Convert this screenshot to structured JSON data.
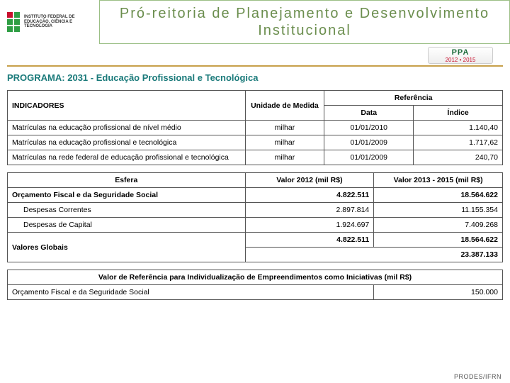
{
  "header": {
    "logo_text": "INSTITUTO FEDERAL DE EDUCAÇÃO, CIÊNCIA E TECNOLOGIA",
    "title": "Pró-reitoria de Planejamento e Desenvolvimento Institucional",
    "ppa_label": "PPA",
    "ppa_years": "2012 • 2015"
  },
  "programa": {
    "label": "PROGRAMA:",
    "value": "2031 - Educação Profissional e Tecnológica"
  },
  "table1": {
    "headers": {
      "indicadores": "INDICADORES",
      "unidade": "Unidade de Medida",
      "referencia": "Referência",
      "data": "Data",
      "indice": "Índice"
    },
    "rows": [
      {
        "ind": "Matrículas na educação profissional de nível médio",
        "uni": "milhar",
        "data": "01/01/2010",
        "idx": "1.140,40"
      },
      {
        "ind": "Matrículas na educação profissional e tecnológica",
        "uni": "milhar",
        "data": "01/01/2009",
        "idx": "1.717,62"
      },
      {
        "ind": "Matrículas na rede federal de educação profissional e tecnológica",
        "uni": "milhar",
        "data": "01/01/2009",
        "idx": "240,70"
      }
    ]
  },
  "table2": {
    "headers": {
      "esfera": "Esfera",
      "v2012": "Valor 2012 (mil R$)",
      "v2013": "Valor 2013 - 2015 (mil R$)"
    },
    "rows": [
      {
        "esf": "Orçamento Fiscal e da Seguridade Social",
        "v12": "4.822.511",
        "v13": "18.564.622",
        "bold": true
      },
      {
        "esf": "Despesas Correntes",
        "v12": "2.897.814",
        "v13": "11.155.354",
        "indent": true
      },
      {
        "esf": "Despesas de Capital",
        "v12": "1.924.697",
        "v13": "7.409.268",
        "indent": true
      }
    ],
    "totals": {
      "label": "Valores Globais",
      "v12": "4.822.511",
      "v13": "18.564.622",
      "grand": "23.387.133"
    }
  },
  "table3": {
    "header": "Valor de Referência para Individualização de Empreendimentos como Iniciativas (mil R$)",
    "row": {
      "label": "Orçamento Fiscal e da Seguridade Social",
      "val": "150.000"
    }
  },
  "footer": "PRODES/IFRN",
  "colors": {
    "title_border": "#9bbf85",
    "title_text": "#6b8e4e",
    "divider": "#c7a04a",
    "programa": "#1a7a7a",
    "border": "#555555"
  }
}
